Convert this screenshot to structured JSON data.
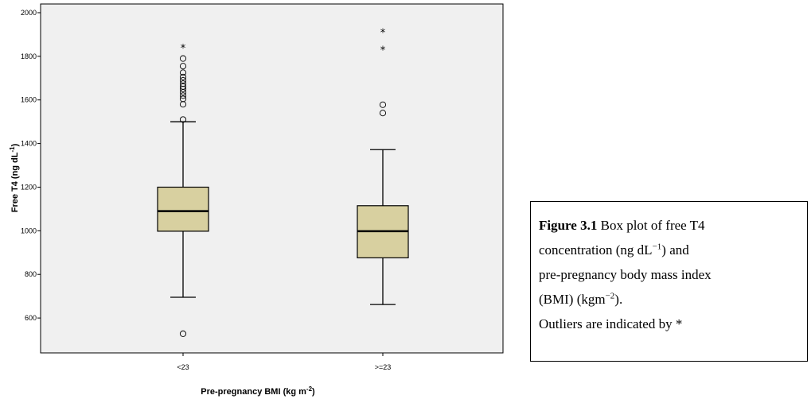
{
  "chart_data": {
    "type": "box",
    "xlabel": "Pre-pregnancy BMI (kg m",
    "xlabel_sup": "-2",
    "xlabel_end": ")",
    "ylabel": "Free T4 (ng dL",
    "ylabel_sup": "-1",
    "ylabel_end": ")",
    "ylim": [
      440,
      2040
    ],
    "yticks": [
      600,
      800,
      1000,
      1200,
      1400,
      1600,
      1800,
      2000
    ],
    "categories": [
      "<23",
      ">=23"
    ],
    "box_color": "#d8d0a0",
    "boxes": [
      {
        "category": "<23",
        "whisker_low": 695,
        "q1": 998,
        "median": 1090,
        "q3": 1200,
        "whisker_high": 1500,
        "outliers_circle": [
          528,
          1510,
          1580,
          1605,
          1620,
          1635,
          1650,
          1662,
          1675,
          1690,
          1705,
          1725,
          1755,
          1790
        ],
        "outliers_star": [
          1840
        ]
      },
      {
        "category": ">=23",
        "whisker_low": 662,
        "q1": 876,
        "median": 998,
        "q3": 1115,
        "whisker_high": 1372,
        "outliers_circle": [
          1540,
          1578
        ],
        "outliers_star": [
          1830,
          1910
        ]
      }
    ]
  },
  "caption": {
    "label": "Figure 3.1",
    "line1": " Box plot of free T4",
    "line2_a": "concentration (ng dL",
    "line2_sup": "−1",
    "line2_b": ") and",
    "line3": "pre-pregnancy body mass index",
    "line4_a": "(BMI) (kgm",
    "line4_sup": "−2",
    "line4_b": ").",
    "line5": "Outliers are indicated by *"
  }
}
